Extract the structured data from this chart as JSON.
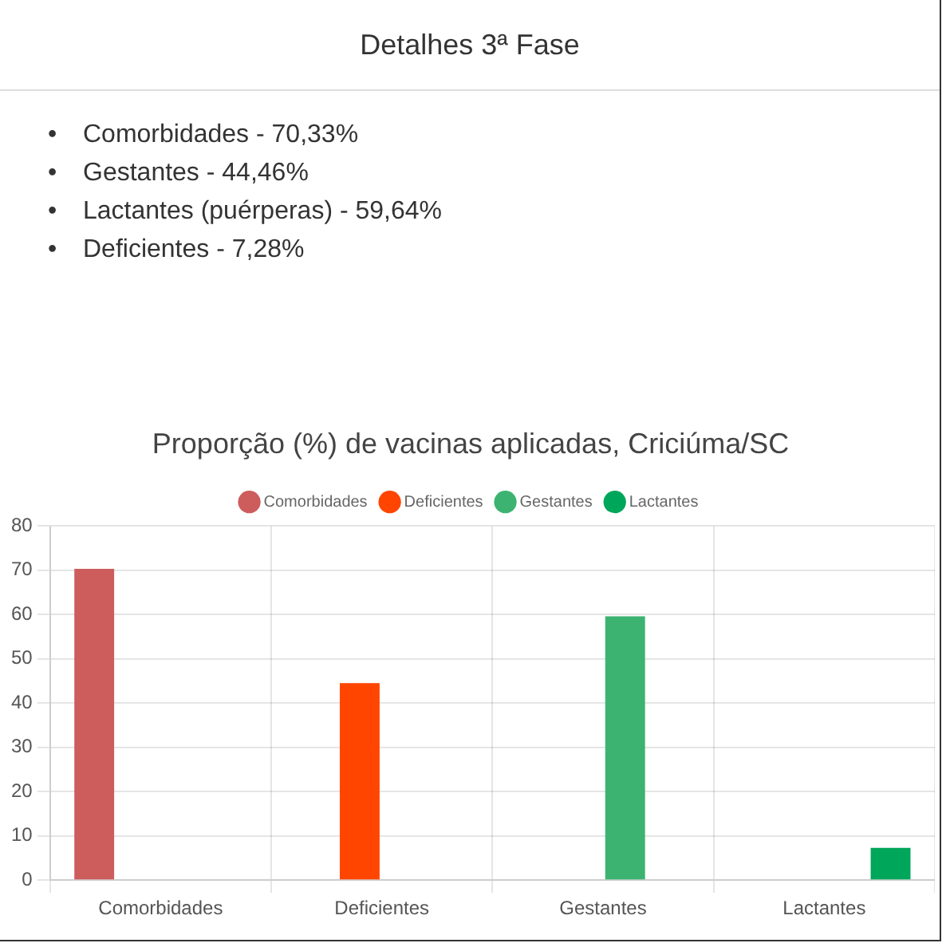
{
  "chart_data": {
    "type": "bar",
    "title": "Proporção (%) de vacinas aplicadas, Criciúma/SC",
    "annotations": [
      "Detalhes 3ª Fase",
      "•",
      "Comorbidades - 70,33%",
      "•",
      "Gestantes - 44,46%",
      "•",
      "Lactantes (puérperas) - 59,64%",
      "•",
      "Deficientes - 7,28%"
    ],
    "categories": [
      "Comorbidades",
      "Deficientes",
      "Gestantes",
      "Lactantes"
    ],
    "series": [
      {
        "name": "Comorbidades",
        "color": "#cd5c5c",
        "values": [
          70.3,
          null,
          null,
          null
        ]
      },
      {
        "name": "Deficientes",
        "color": "#ff4500",
        "values": [
          null,
          44.5,
          null,
          null
        ]
      },
      {
        "name": "Gestantes",
        "color": "#3cb371",
        "values": [
          null,
          null,
          59.6,
          null
        ]
      },
      {
        "name": "Lactantes",
        "color": "#00a65a",
        "values": [
          null,
          null,
          null,
          7.3
        ]
      }
    ],
    "ylim": [
      0,
      80
    ],
    "yticks": [
      0,
      10,
      20,
      30,
      40,
      50,
      60,
      70,
      80
    ],
    "grid": true,
    "legend": "top"
  }
}
